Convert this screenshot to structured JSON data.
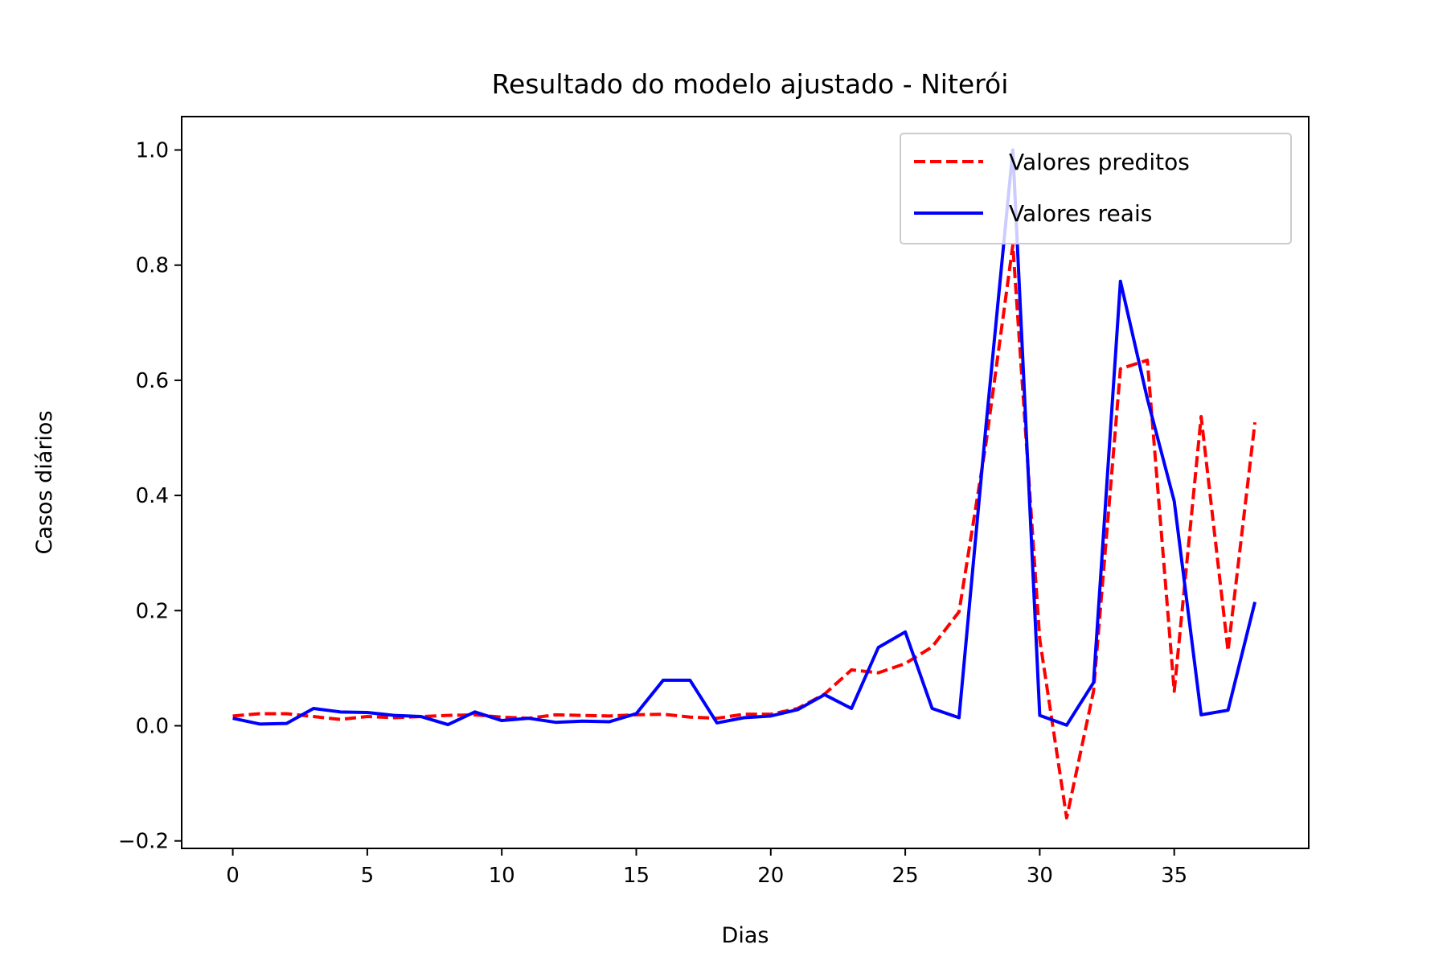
{
  "chart_data": {
    "type": "line",
    "title": "Resultado do modelo ajustado - Niterói",
    "xlabel": "Dias",
    "ylabel": "Casos diários",
    "xlim": [
      -1.9,
      40
    ],
    "ylim": [
      -0.213,
      1.058
    ],
    "xticks": [
      0,
      5,
      10,
      15,
      20,
      25,
      30,
      35
    ],
    "yticks": [
      -0.2,
      0.0,
      0.2,
      0.4,
      0.6,
      0.8,
      1.0
    ],
    "ytick_labels": [
      "−0.2",
      "0.0",
      "0.2",
      "0.4",
      "0.6",
      "0.8",
      "1.0"
    ],
    "grid": false,
    "legend_position": "top-right",
    "x": [
      0,
      1,
      2,
      3,
      4,
      5,
      6,
      7,
      8,
      9,
      10,
      11,
      12,
      13,
      14,
      15,
      16,
      17,
      18,
      19,
      20,
      21,
      22,
      23,
      24,
      25,
      26,
      27,
      28,
      29,
      30,
      31,
      32,
      33,
      34,
      35,
      36,
      37,
      38
    ],
    "series": [
      {
        "name": "Valores preditos",
        "color": "#ff0000",
        "style": "dashed",
        "values": [
          0.017,
          0.021,
          0.021,
          0.016,
          0.011,
          0.016,
          0.014,
          0.016,
          0.018,
          0.019,
          0.015,
          0.013,
          0.019,
          0.018,
          0.017,
          0.019,
          0.02,
          0.015,
          0.013,
          0.02,
          0.02,
          0.03,
          0.055,
          0.097,
          0.092,
          0.108,
          0.137,
          0.198,
          0.49,
          0.835,
          0.15,
          -0.16,
          0.06,
          0.62,
          0.635,
          0.06,
          0.537,
          0.13,
          0.527
        ]
      },
      {
        "name": "Valores reais",
        "color": "#0000ff",
        "style": "solid",
        "values": [
          0.013,
          0.003,
          0.004,
          0.03,
          0.024,
          0.023,
          0.018,
          0.016,
          0.002,
          0.024,
          0.009,
          0.013,
          0.006,
          0.008,
          0.007,
          0.021,
          0.079,
          0.079,
          0.005,
          0.014,
          0.017,
          0.028,
          0.054,
          0.03,
          0.136,
          0.163,
          0.03,
          0.014,
          0.52,
          1.0,
          0.018,
          0.001,
          0.075,
          0.772,
          0.568,
          0.39,
          0.019,
          0.027,
          0.215
        ]
      }
    ]
  }
}
